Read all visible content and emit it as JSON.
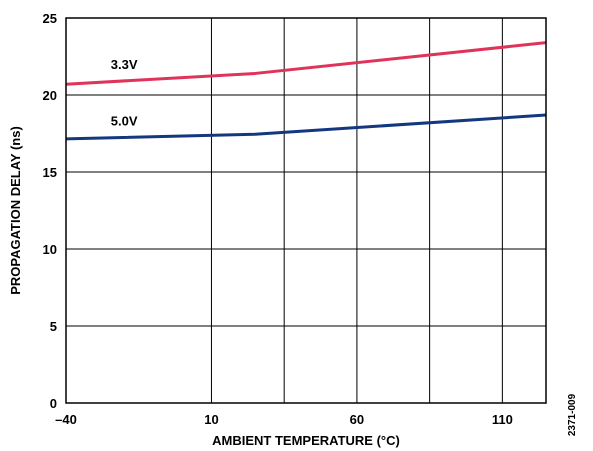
{
  "chart_data": {
    "type": "line",
    "title": "",
    "xlabel": "AMBIENT TEMPERATURE (°C)",
    "ylabel": "PROPAGATION DELAY (ns)",
    "xlim": [
      -40,
      125
    ],
    "ylim": [
      0,
      25
    ],
    "x_ticks": [
      -40,
      10,
      60,
      110
    ],
    "x_tick_labels": [
      "–40",
      "10",
      "60",
      "110"
    ],
    "y_ticks": [
      0,
      5,
      10,
      15,
      20,
      25
    ],
    "y_tick_labels": [
      "0",
      "5",
      "10",
      "15",
      "20",
      "25"
    ],
    "grid": true,
    "legend": "none",
    "series": [
      {
        "name": "3.3V",
        "color": "#e0335a",
        "x": [
          -40,
          25,
          125
        ],
        "y": [
          20.7,
          21.4,
          23.4
        ]
      },
      {
        "name": "5.0V",
        "color": "#14387f",
        "x": [
          -40,
          25,
          125
        ],
        "y": [
          17.15,
          17.45,
          18.7
        ]
      }
    ],
    "figure_id": "2371-009"
  }
}
